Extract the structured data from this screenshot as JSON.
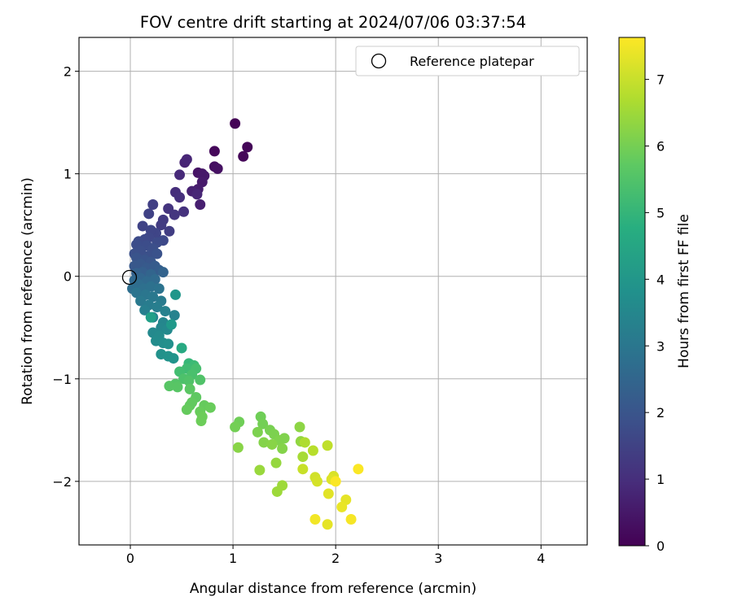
{
  "chart_data": {
    "type": "scatter",
    "title": "FOV centre drift starting at 2024/07/06 03:37:54",
    "xlabel": "Angular distance from reference (arcmin)",
    "ylabel": "Rotation from reference (arcmin)",
    "xlim": [
      -0.5,
      4.45
    ],
    "ylim": [
      -2.62,
      2.33
    ],
    "xticks": [
      0,
      1,
      2,
      3,
      4
    ],
    "yticks": [
      -2,
      -1,
      0,
      1,
      2
    ],
    "xtick_labels": [
      "0",
      "1",
      "2",
      "3",
      "4"
    ],
    "ytick_labels": [
      "−2",
      "−1",
      "0",
      "1",
      "2"
    ],
    "grid": true,
    "legend": {
      "position": "top-right",
      "label": "Reference platepar"
    },
    "reference_point": {
      "x": 0,
      "y": 0
    },
    "colorbar": {
      "label": "Hours from first FF file",
      "min": 0,
      "max": 7.63,
      "ticks": [
        0,
        1,
        2,
        3,
        4,
        5,
        6,
        7
      ],
      "tick_labels": [
        "0",
        "1",
        "2",
        "3",
        "4",
        "5",
        "6",
        "7"
      ],
      "colormap": "viridis"
    },
    "series": [
      {
        "marker": "circle",
        "points": [
          {
            "x": 1.02,
            "y": 1.49,
            "c": 0.05
          },
          {
            "x": 1.14,
            "y": 1.26,
            "c": 0.1
          },
          {
            "x": 1.1,
            "y": 1.17,
            "c": 0.12
          },
          {
            "x": 0.82,
            "y": 1.22,
            "c": 0.15
          },
          {
            "x": 0.82,
            "y": 1.07,
            "c": 0.3
          },
          {
            "x": 0.85,
            "y": 1.05,
            "c": 0.35
          },
          {
            "x": 0.66,
            "y": 1.01,
            "c": 0.4
          },
          {
            "x": 0.7,
            "y": 1.0,
            "c": 0.45
          },
          {
            "x": 0.72,
            "y": 0.98,
            "c": 0.5
          },
          {
            "x": 0.7,
            "y": 0.92,
            "c": 0.55
          },
          {
            "x": 0.66,
            "y": 0.85,
            "c": 0.6
          },
          {
            "x": 0.68,
            "y": 0.7,
            "c": 0.65
          },
          {
            "x": 0.6,
            "y": 0.83,
            "c": 0.7
          },
          {
            "x": 0.65,
            "y": 0.8,
            "c": 0.8
          },
          {
            "x": 0.53,
            "y": 1.11,
            "c": 0.75
          },
          {
            "x": 0.55,
            "y": 1.14,
            "c": 0.8
          },
          {
            "x": 0.48,
            "y": 0.99,
            "c": 0.9
          },
          {
            "x": 0.44,
            "y": 0.82,
            "c": 1.0
          },
          {
            "x": 0.48,
            "y": 0.77,
            "c": 1.05
          },
          {
            "x": 0.52,
            "y": 0.63,
            "c": 1.1
          },
          {
            "x": 0.37,
            "y": 0.66,
            "c": 1.15
          },
          {
            "x": 0.43,
            "y": 0.6,
            "c": 1.2
          },
          {
            "x": 0.32,
            "y": 0.55,
            "c": 1.3
          },
          {
            "x": 0.3,
            "y": 0.5,
            "c": 1.35
          },
          {
            "x": 0.38,
            "y": 0.44,
            "c": 1.4
          },
          {
            "x": 0.22,
            "y": 0.7,
            "c": 1.45
          },
          {
            "x": 0.18,
            "y": 0.61,
            "c": 1.5
          },
          {
            "x": 0.12,
            "y": 0.49,
            "c": 1.55
          },
          {
            "x": 0.25,
            "y": 0.42,
            "c": 1.6
          },
          {
            "x": 0.2,
            "y": 0.45,
            "c": 1.6
          },
          {
            "x": 0.18,
            "y": 0.38,
            "c": 1.65
          },
          {
            "x": 0.14,
            "y": 0.36,
            "c": 1.7
          },
          {
            "x": 0.32,
            "y": 0.35,
            "c": 1.7
          },
          {
            "x": 0.26,
            "y": 0.33,
            "c": 1.75
          },
          {
            "x": 0.08,
            "y": 0.34,
            "c": 1.75
          },
          {
            "x": 0.06,
            "y": 0.31,
            "c": 1.8
          },
          {
            "x": 0.16,
            "y": 0.3,
            "c": 1.8
          },
          {
            "x": 0.22,
            "y": 0.27,
            "c": 1.85
          },
          {
            "x": 0.1,
            "y": 0.25,
            "c": 1.85
          },
          {
            "x": 0.04,
            "y": 0.22,
            "c": 1.9
          },
          {
            "x": 0.18,
            "y": 0.2,
            "c": 1.9
          },
          {
            "x": 0.26,
            "y": 0.22,
            "c": 1.95
          },
          {
            "x": 0.06,
            "y": 0.18,
            "c": 2.0
          },
          {
            "x": 0.14,
            "y": 0.16,
            "c": 2.0
          },
          {
            "x": 0.2,
            "y": 0.14,
            "c": 2.05
          },
          {
            "x": 0.1,
            "y": 0.12,
            "c": 2.1
          },
          {
            "x": 0.04,
            "y": 0.1,
            "c": 2.1
          },
          {
            "x": 0.16,
            "y": 0.08,
            "c": 2.15
          },
          {
            "x": 0.24,
            "y": 0.1,
            "c": 2.2
          },
          {
            "x": 0.28,
            "y": 0.06,
            "c": 2.25
          },
          {
            "x": 0.12,
            "y": 0.04,
            "c": 2.3
          },
          {
            "x": 0.06,
            "y": 0.03,
            "c": 2.35
          },
          {
            "x": 0.32,
            "y": 0.04,
            "c": 2.4
          },
          {
            "x": 0.2,
            "y": 0.02,
            "c": 2.45
          },
          {
            "x": 0.1,
            "y": -0.02,
            "c": 2.5
          },
          {
            "x": 0.04,
            "y": -0.04,
            "c": 2.55
          },
          {
            "x": 0.16,
            "y": -0.05,
            "c": 2.6
          },
          {
            "x": 0.24,
            "y": -0.03,
            "c": 2.65
          },
          {
            "x": 0.08,
            "y": -0.08,
            "c": 2.7
          },
          {
            "x": 0.02,
            "y": -0.12,
            "c": 2.75
          },
          {
            "x": 0.13,
            "y": -0.12,
            "c": 2.8
          },
          {
            "x": 0.2,
            "y": -0.1,
            "c": 2.85
          },
          {
            "x": 0.28,
            "y": -0.12,
            "c": 2.9
          },
          {
            "x": 0.06,
            "y": -0.16,
            "c": 2.95
          },
          {
            "x": 0.15,
            "y": -0.18,
            "c": 3.0
          },
          {
            "x": 0.22,
            "y": -0.2,
            "c": 3.05
          },
          {
            "x": 0.1,
            "y": -0.24,
            "c": 3.1
          },
          {
            "x": 0.3,
            "y": -0.24,
            "c": 3.15
          },
          {
            "x": 0.18,
            "y": -0.28,
            "c": 3.2
          },
          {
            "x": 0.26,
            "y": -0.3,
            "c": 3.25
          },
          {
            "x": 0.14,
            "y": -0.33,
            "c": 3.3
          },
          {
            "x": 0.34,
            "y": -0.34,
            "c": 3.35
          },
          {
            "x": 0.43,
            "y": -0.38,
            "c": 3.4
          },
          {
            "x": 0.22,
            "y": -0.4,
            "c": 3.45
          },
          {
            "x": 0.32,
            "y": -0.45,
            "c": 3.5
          },
          {
            "x": 0.3,
            "y": -0.5,
            "c": 3.55
          },
          {
            "x": 0.36,
            "y": -0.52,
            "c": 3.6
          },
          {
            "x": 0.22,
            "y": -0.55,
            "c": 3.6
          },
          {
            "x": 0.28,
            "y": -0.58,
            "c": 3.65
          },
          {
            "x": 0.25,
            "y": -0.63,
            "c": 3.7
          },
          {
            "x": 0.32,
            "y": -0.65,
            "c": 3.75
          },
          {
            "x": 0.37,
            "y": -0.66,
            "c": 3.8
          },
          {
            "x": 0.3,
            "y": -0.76,
            "c": 3.85
          },
          {
            "x": 0.37,
            "y": -0.78,
            "c": 3.9
          },
          {
            "x": 0.42,
            "y": -0.8,
            "c": 3.95
          },
          {
            "x": 0.44,
            "y": -0.18,
            "c": 4.0
          },
          {
            "x": 0.4,
            "y": -0.47,
            "c": 4.1
          },
          {
            "x": 0.2,
            "y": -0.4,
            "c": 4.3
          },
          {
            "x": 0.5,
            "y": -0.7,
            "c": 4.6
          },
          {
            "x": 0.57,
            "y": -0.85,
            "c": 5.1
          },
          {
            "x": 0.62,
            "y": -0.87,
            "c": 5.2
          },
          {
            "x": 0.55,
            "y": -0.9,
            "c": 5.25
          },
          {
            "x": 0.48,
            "y": -0.93,
            "c": 5.3
          },
          {
            "x": 0.64,
            "y": -0.9,
            "c": 5.35
          },
          {
            "x": 0.6,
            "y": -0.96,
            "c": 5.4
          },
          {
            "x": 0.52,
            "y": -1.0,
            "c": 5.45
          },
          {
            "x": 0.57,
            "y": -1.02,
            "c": 5.5
          },
          {
            "x": 0.68,
            "y": -1.01,
            "c": 5.5
          },
          {
            "x": 0.44,
            "y": -1.05,
            "c": 5.55
          },
          {
            "x": 0.38,
            "y": -1.07,
            "c": 5.6
          },
          {
            "x": 0.46,
            "y": -1.08,
            "c": 5.6
          },
          {
            "x": 0.58,
            "y": -1.1,
            "c": 5.65
          },
          {
            "x": 0.64,
            "y": -1.18,
            "c": 5.7
          },
          {
            "x": 0.6,
            "y": -1.23,
            "c": 5.75
          },
          {
            "x": 0.58,
            "y": -1.26,
            "c": 5.75
          },
          {
            "x": 0.55,
            "y": -1.3,
            "c": 5.8
          },
          {
            "x": 0.72,
            "y": -1.26,
            "c": 5.8
          },
          {
            "x": 0.78,
            "y": -1.28,
            "c": 5.85
          },
          {
            "x": 0.68,
            "y": -1.32,
            "c": 5.85
          },
          {
            "x": 0.7,
            "y": -1.37,
            "c": 5.9
          },
          {
            "x": 0.69,
            "y": -1.41,
            "c": 5.9
          },
          {
            "x": 1.27,
            "y": -1.37,
            "c": 5.95
          },
          {
            "x": 1.06,
            "y": -1.42,
            "c": 5.95
          },
          {
            "x": 1.02,
            "y": -1.47,
            "c": 6.0
          },
          {
            "x": 1.29,
            "y": -1.44,
            "c": 6.0
          },
          {
            "x": 1.36,
            "y": -1.5,
            "c": 6.05
          },
          {
            "x": 1.4,
            "y": -1.54,
            "c": 6.1
          },
          {
            "x": 1.24,
            "y": -1.52,
            "c": 6.1
          },
          {
            "x": 1.45,
            "y": -1.6,
            "c": 6.15
          },
          {
            "x": 1.5,
            "y": -1.58,
            "c": 6.15
          },
          {
            "x": 1.3,
            "y": -1.62,
            "c": 6.2
          },
          {
            "x": 1.48,
            "y": -1.68,
            "c": 6.2
          },
          {
            "x": 1.38,
            "y": -1.64,
            "c": 6.25
          },
          {
            "x": 1.05,
            "y": -1.67,
            "c": 6.25
          },
          {
            "x": 1.65,
            "y": -1.47,
            "c": 6.3
          },
          {
            "x": 1.66,
            "y": -1.61,
            "c": 6.35
          },
          {
            "x": 1.42,
            "y": -1.82,
            "c": 6.4
          },
          {
            "x": 1.26,
            "y": -1.89,
            "c": 6.45
          },
          {
            "x": 1.48,
            "y": -2.04,
            "c": 6.5
          },
          {
            "x": 1.43,
            "y": -2.1,
            "c": 6.5
          },
          {
            "x": 1.68,
            "y": -1.76,
            "c": 6.6
          },
          {
            "x": 1.7,
            "y": -1.62,
            "c": 6.7
          },
          {
            "x": 1.78,
            "y": -1.7,
            "c": 6.8
          },
          {
            "x": 1.92,
            "y": -1.65,
            "c": 6.9
          },
          {
            "x": 1.68,
            "y": -1.88,
            "c": 7.0
          },
          {
            "x": 1.8,
            "y": -1.96,
            "c": 7.1
          },
          {
            "x": 1.82,
            "y": -2.0,
            "c": 7.15
          },
          {
            "x": 1.98,
            "y": -1.95,
            "c": 7.2
          },
          {
            "x": 1.96,
            "y": -1.98,
            "c": 7.25
          },
          {
            "x": 1.93,
            "y": -2.12,
            "c": 7.3
          },
          {
            "x": 2.1,
            "y": -2.18,
            "c": 7.35
          },
          {
            "x": 2.06,
            "y": -2.25,
            "c": 7.4
          },
          {
            "x": 1.92,
            "y": -2.42,
            "c": 7.35
          },
          {
            "x": 1.8,
            "y": -2.37,
            "c": 7.5
          },
          {
            "x": 2.15,
            "y": -2.37,
            "c": 7.55
          },
          {
            "x": 2.22,
            "y": -1.88,
            "c": 7.6
          },
          {
            "x": 2.0,
            "y": -2.0,
            "c": 7.6
          }
        ]
      }
    ]
  }
}
